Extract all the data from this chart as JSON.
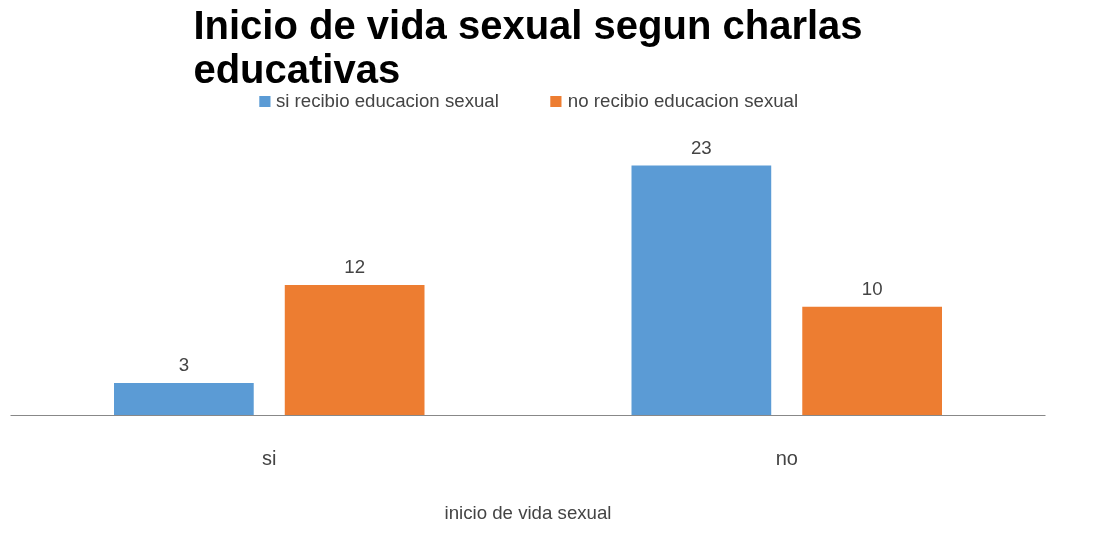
{
  "chart_data": {
    "type": "bar",
    "title": "Inicio de vida sexual segun charlas educativas",
    "xlabel": "inicio de vida sexual",
    "categories": [
      "si",
      "no"
    ],
    "series": [
      {
        "name": "si recibio educacion sexual",
        "color": "#5b9bd5",
        "values": [
          3,
          23
        ]
      },
      {
        "name": "no recibio educacion sexual",
        "color": "#ed7d31",
        "values": [
          12,
          10
        ]
      }
    ],
    "data_labels": true,
    "legend": "top",
    "grid": false
  }
}
